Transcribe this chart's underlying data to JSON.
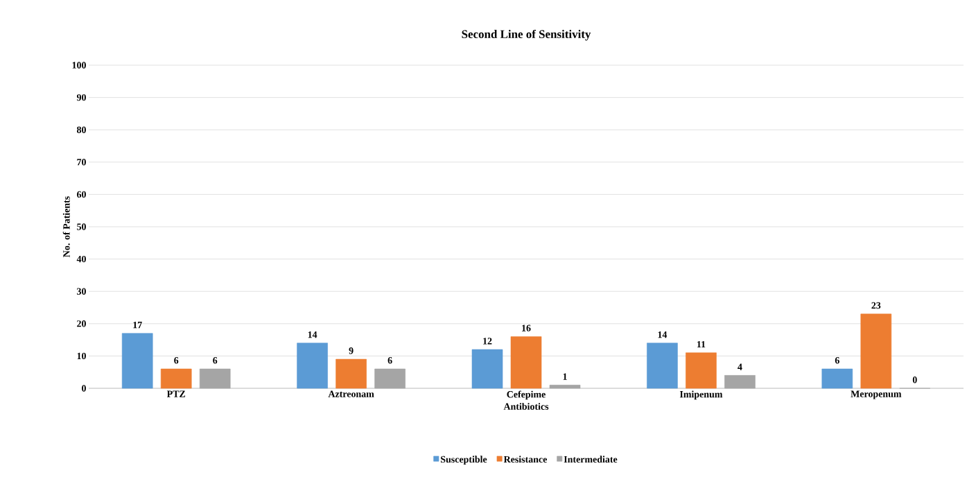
{
  "chart_data": {
    "type": "bar",
    "title": "Second Line of Sensitivity",
    "xlabel": "Antibiotics",
    "ylabel": "No. of Patients",
    "categories": [
      "PTZ",
      "Aztreonam",
      "Cefepime",
      "Imipenum",
      "Meropenum"
    ],
    "series": [
      {
        "name": "Susceptible",
        "color": "#5b9bd5",
        "values": [
          17,
          14,
          12,
          14,
          6
        ]
      },
      {
        "name": "Resistance",
        "color": "#ed7d31",
        "values": [
          6,
          9,
          16,
          11,
          23
        ]
      },
      {
        "name": "Intermediate",
        "color": "#a5a5a5",
        "values": [
          6,
          6,
          1,
          4,
          0
        ]
      }
    ],
    "ylim": [
      0,
      100
    ],
    "yticks": [
      0,
      10,
      20,
      30,
      40,
      50,
      60,
      70,
      80,
      90,
      100
    ],
    "grid": "y",
    "legend": "bottom",
    "data_labels": true
  }
}
